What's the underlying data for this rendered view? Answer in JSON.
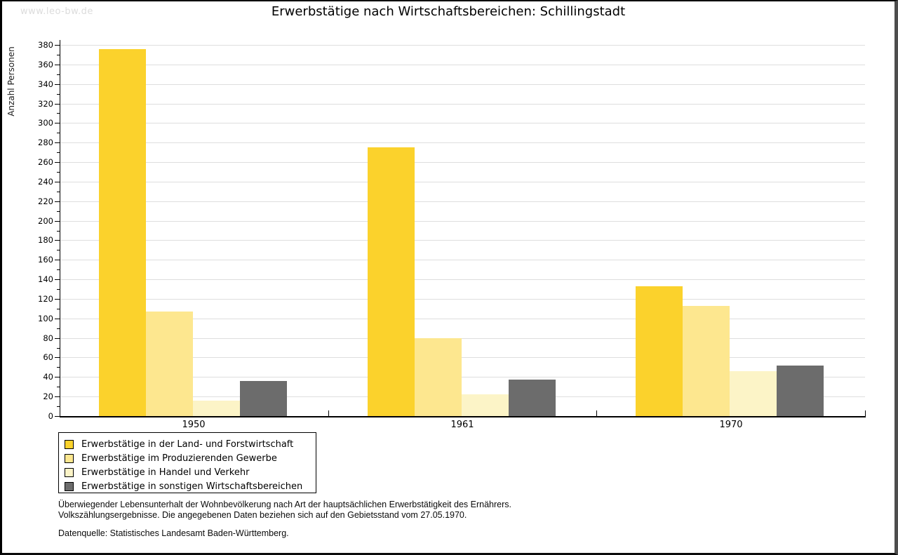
{
  "watermark": "www.leo-bw.de",
  "title": "Erwerbstätige nach Wirtschaftsbereichen: Schillingstadt",
  "chart_data": {
    "type": "bar",
    "title": "Erwerbstätige nach Wirtschaftsbereichen: Schillingstadt",
    "xlabel": "",
    "ylabel": "Anzahl Personen",
    "categories": [
      "1950",
      "1961",
      "1970"
    ],
    "series": [
      {
        "name": "Erwerbstätige in der Land- und Forstwirtschaft",
        "color": "#FBD22C",
        "values": [
          376,
          275,
          133
        ]
      },
      {
        "name": "Erwerbstätige im Produzierenden Gewerbe",
        "color": "#FDE78F",
        "values": [
          107,
          80,
          113
        ]
      },
      {
        "name": "Erwerbstätige in Handel und Verkehr",
        "color": "#FCF4C7",
        "values": [
          16,
          22,
          46
        ]
      },
      {
        "name": "Erwerbstätige in sonstigen Wirtschaftsbereichen",
        "color": "#6C6C6C",
        "values": [
          36,
          37,
          52
        ]
      }
    ],
    "ylim": [
      0,
      380
    ],
    "ytick_major_step": 20,
    "ytick_minor_step": 10,
    "grid": true,
    "gridline_color": "#DEDEDE",
    "axis_color": "#000000",
    "legend_position": "bottom-left"
  },
  "footer": {
    "line1": "Überwiegender Lebensunterhalt der Wohnbevölkerung nach Art der hauptsächlichen Erwerbstätigkeit des Ernährers.",
    "line2": "Volkszählungsergebnisse. Die angegebenen Daten beziehen sich auf den Gebietsstand vom 27.05.1970.",
    "source": "Datenquelle: Statistisches Landesamt Baden-Württemberg."
  }
}
